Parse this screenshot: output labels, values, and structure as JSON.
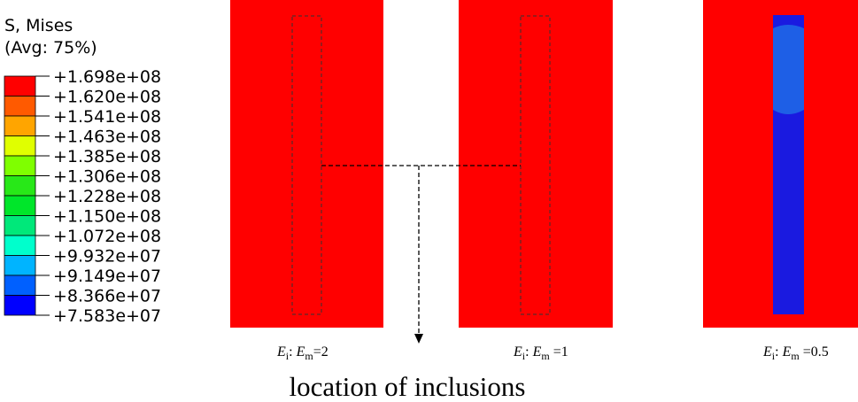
{
  "legend": {
    "title": [
      "S, Mises",
      "(Avg: 75%)"
    ],
    "labels": [
      "+1.698e+08",
      "+1.620e+08",
      "+1.541e+08",
      "+1.463e+08",
      "+1.385e+08",
      "+1.306e+08",
      "+1.228e+08",
      "+1.150e+08",
      "+1.072e+08",
      "+9.932e+07",
      "+9.149e+07",
      "+8.366e+07",
      "+7.583e+07"
    ],
    "colors": [
      "#ff0000",
      "#ff5a00",
      "#ffa500",
      "#e0ff00",
      "#7fff00",
      "#28e818",
      "#00e62a",
      "#00e87a",
      "#00ffcc",
      "#00b4ff",
      "#0060ff",
      "#0000ff"
    ]
  },
  "panels": [
    {
      "caption": {
        "e1": "E",
        "s1": "i",
        "mid": ": ",
        "e2": "E",
        "s2": "m",
        "rest": "=2"
      }
    },
    {
      "caption": {
        "e1": "E",
        "s1": "i",
        "mid": ": ",
        "e2": "E",
        "s2": "m",
        "rest": " =1"
      }
    },
    {
      "caption": {
        "e1": "E",
        "s1": "i",
        "mid": ": ",
        "e2": "E",
        "s2": "m",
        "rest": " =0.5"
      }
    }
  ],
  "annotation": "location of inclusions"
}
